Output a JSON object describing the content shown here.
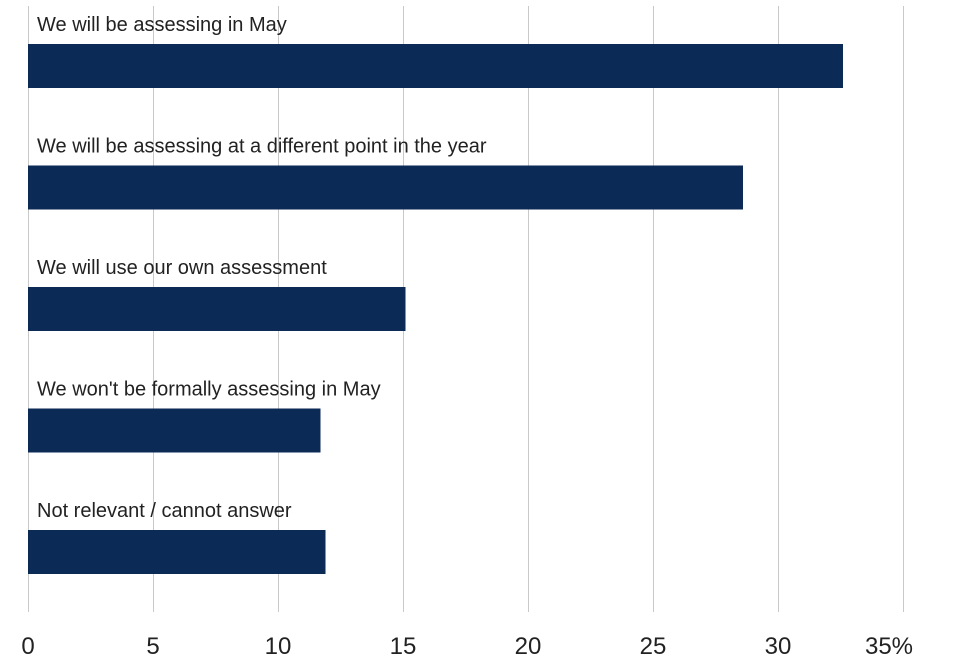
{
  "chart_data": {
    "type": "bar",
    "orientation": "horizontal",
    "categories": [
      "We will be assessing in May",
      "We will be assessing at a different point in the year",
      "We will use our own assessment",
      "We won't be formally assessing in May",
      "Not relevant / cannot answer"
    ],
    "values": [
      32.6,
      28.6,
      15.1,
      11.7,
      11.9
    ],
    "xlim": [
      0,
      35
    ],
    "ticks": [
      0,
      5,
      10,
      15,
      20,
      25,
      30,
      35
    ],
    "tick_labels": [
      "0",
      "5",
      "10",
      "15",
      "20",
      "25",
      "30",
      "35%"
    ],
    "grid": true,
    "colors": {
      "bar": "#0b2a55",
      "grid": "#c9c9c9"
    }
  }
}
